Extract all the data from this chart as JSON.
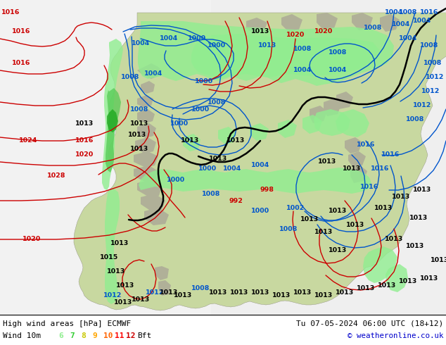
{
  "title_left": "High wind areas [hPa] ECMWF",
  "title_right": "Tu 07-05-2024 06:00 UTC (18+12)",
  "legend_label": "Wind 10m",
  "legend_values": [
    "6",
    "7",
    "8",
    "9",
    "10",
    "11",
    "12",
    "Bft"
  ],
  "legend_colors": [
    "#90ee90",
    "#32cd32",
    "#c8c800",
    "#ffa500",
    "#ff6400",
    "#ff0000",
    "#cc0000"
  ],
  "copyright": "© weatheronline.co.uk",
  "ocean_left_color": "#f0f0f0",
  "land_color": "#c8d8a0",
  "terrain_color": "#b8b8a0",
  "wind_green_color": "#90ee90",
  "ocean_right_color": "#e8e8f0",
  "bg_color": "#f0f0f0"
}
